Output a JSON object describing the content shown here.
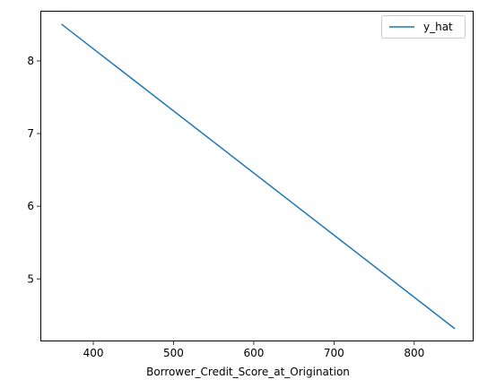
{
  "chart_data": {
    "type": "line",
    "title": "",
    "xlabel": "Borrower_Credit_Score_at_Origination",
    "ylabel": "",
    "xlim": [
      334,
      874
    ],
    "ylim": [
      4.14,
      8.69
    ],
    "xticks": [
      400,
      500,
      600,
      700,
      800
    ],
    "yticks": [
      5,
      6,
      7,
      8
    ],
    "grid": false,
    "legend_position": "top-right",
    "series": [
      {
        "name": "y_hat",
        "color": "#1f77b4",
        "x": [
          361,
          850
        ],
        "y": [
          8.5,
          4.32
        ]
      }
    ]
  }
}
